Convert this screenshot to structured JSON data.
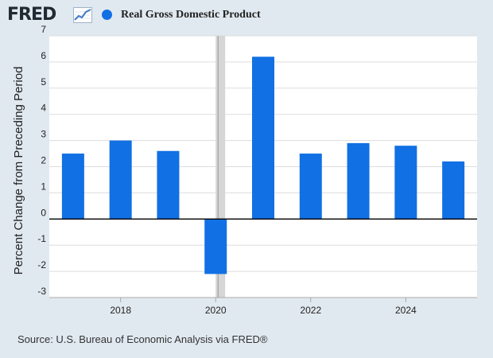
{
  "header": {
    "logo_text": "FRED",
    "legend_label": "Real Gross Domestic Product"
  },
  "colors": {
    "series": "#1170e4",
    "background": "#e1e9f0",
    "plot_background": "#ffffff",
    "grid": "#dddddd",
    "recession_shading": "#d6d6d6",
    "logo_graph": "#3f7bc4"
  },
  "icons": {
    "logo_graph": "line-graph-icon",
    "legend_marker": "circle-icon"
  },
  "chart_data": {
    "type": "bar",
    "ylabel": "Percent Change from Preceding Period",
    "ylim": [
      -3,
      7
    ],
    "yticks": [
      -3,
      -2,
      -1,
      0,
      1,
      2,
      3,
      4,
      5,
      6,
      7
    ],
    "xlim": [
      2016.5,
      2025.5
    ],
    "xticks": [
      2018,
      2020,
      2022,
      2024
    ],
    "grid": true,
    "recession_shading": {
      "start": 2020.0,
      "end": 2020.2
    },
    "series": [
      {
        "name": "Real Gross Domestic Product",
        "x": [
          2017,
          2018,
          2019,
          2020,
          2021,
          2022,
          2023,
          2024,
          2025
        ],
        "values": [
          2.5,
          3.0,
          2.6,
          -2.1,
          6.2,
          2.5,
          2.9,
          2.8,
          2.2
        ]
      }
    ]
  },
  "footer": {
    "source": "Source: U.S. Bureau of Economic Analysis via FRED®"
  }
}
